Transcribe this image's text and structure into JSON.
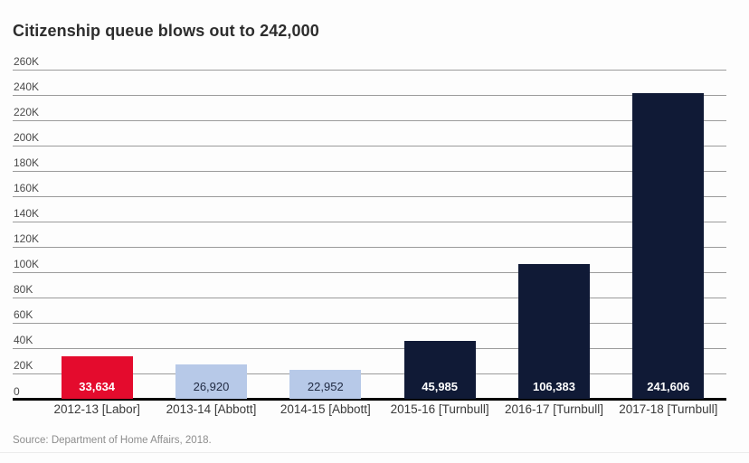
{
  "title": "Citizenship queue blows out to 242,000",
  "source": "Source: Department of Home Affairs, 2018.",
  "chart_data": {
    "type": "bar",
    "title": "Citizenship queue blows out to 242,000",
    "categories": [
      "2012-13 [Labor]",
      "2013-14 [Abbott]",
      "2014-15 [Abbott]",
      "2015-16 [Turnbull]",
      "2016-17 [Turnbull]",
      "2017-18 [Turnbull]"
    ],
    "values": [
      33634,
      26920,
      22952,
      45985,
      106383,
      241606
    ],
    "value_labels": [
      "33,634",
      "26,920",
      "22,952",
      "45,985",
      "106,383",
      "241,606"
    ],
    "bar_groups": [
      "labor",
      "abbott",
      "abbott",
      "turnbull",
      "turnbull",
      "turnbull"
    ],
    "group_colors": {
      "labor": "#e40b2d",
      "abbott": "#b7c9e8",
      "turnbull": "#101a36"
    },
    "group_label_colors": {
      "labor": "#ffffff",
      "abbott": "#222c44",
      "turnbull": "#ffffff"
    },
    "xlabel": "",
    "ylabel": "",
    "ylim": [
      0,
      260000
    ],
    "ytick_step": 20000,
    "ytick_labels": [
      "0",
      "20K",
      "40K",
      "60K",
      "80K",
      "100K",
      "120K",
      "140K",
      "160K",
      "180K",
      "200K",
      "220K",
      "240K",
      "260K"
    ],
    "grid": true,
    "legend": false,
    "gridline_color": "#9b9b9b",
    "axis_line_color": "#000000",
    "source": "Source: Department of Home Affairs, 2018."
  }
}
